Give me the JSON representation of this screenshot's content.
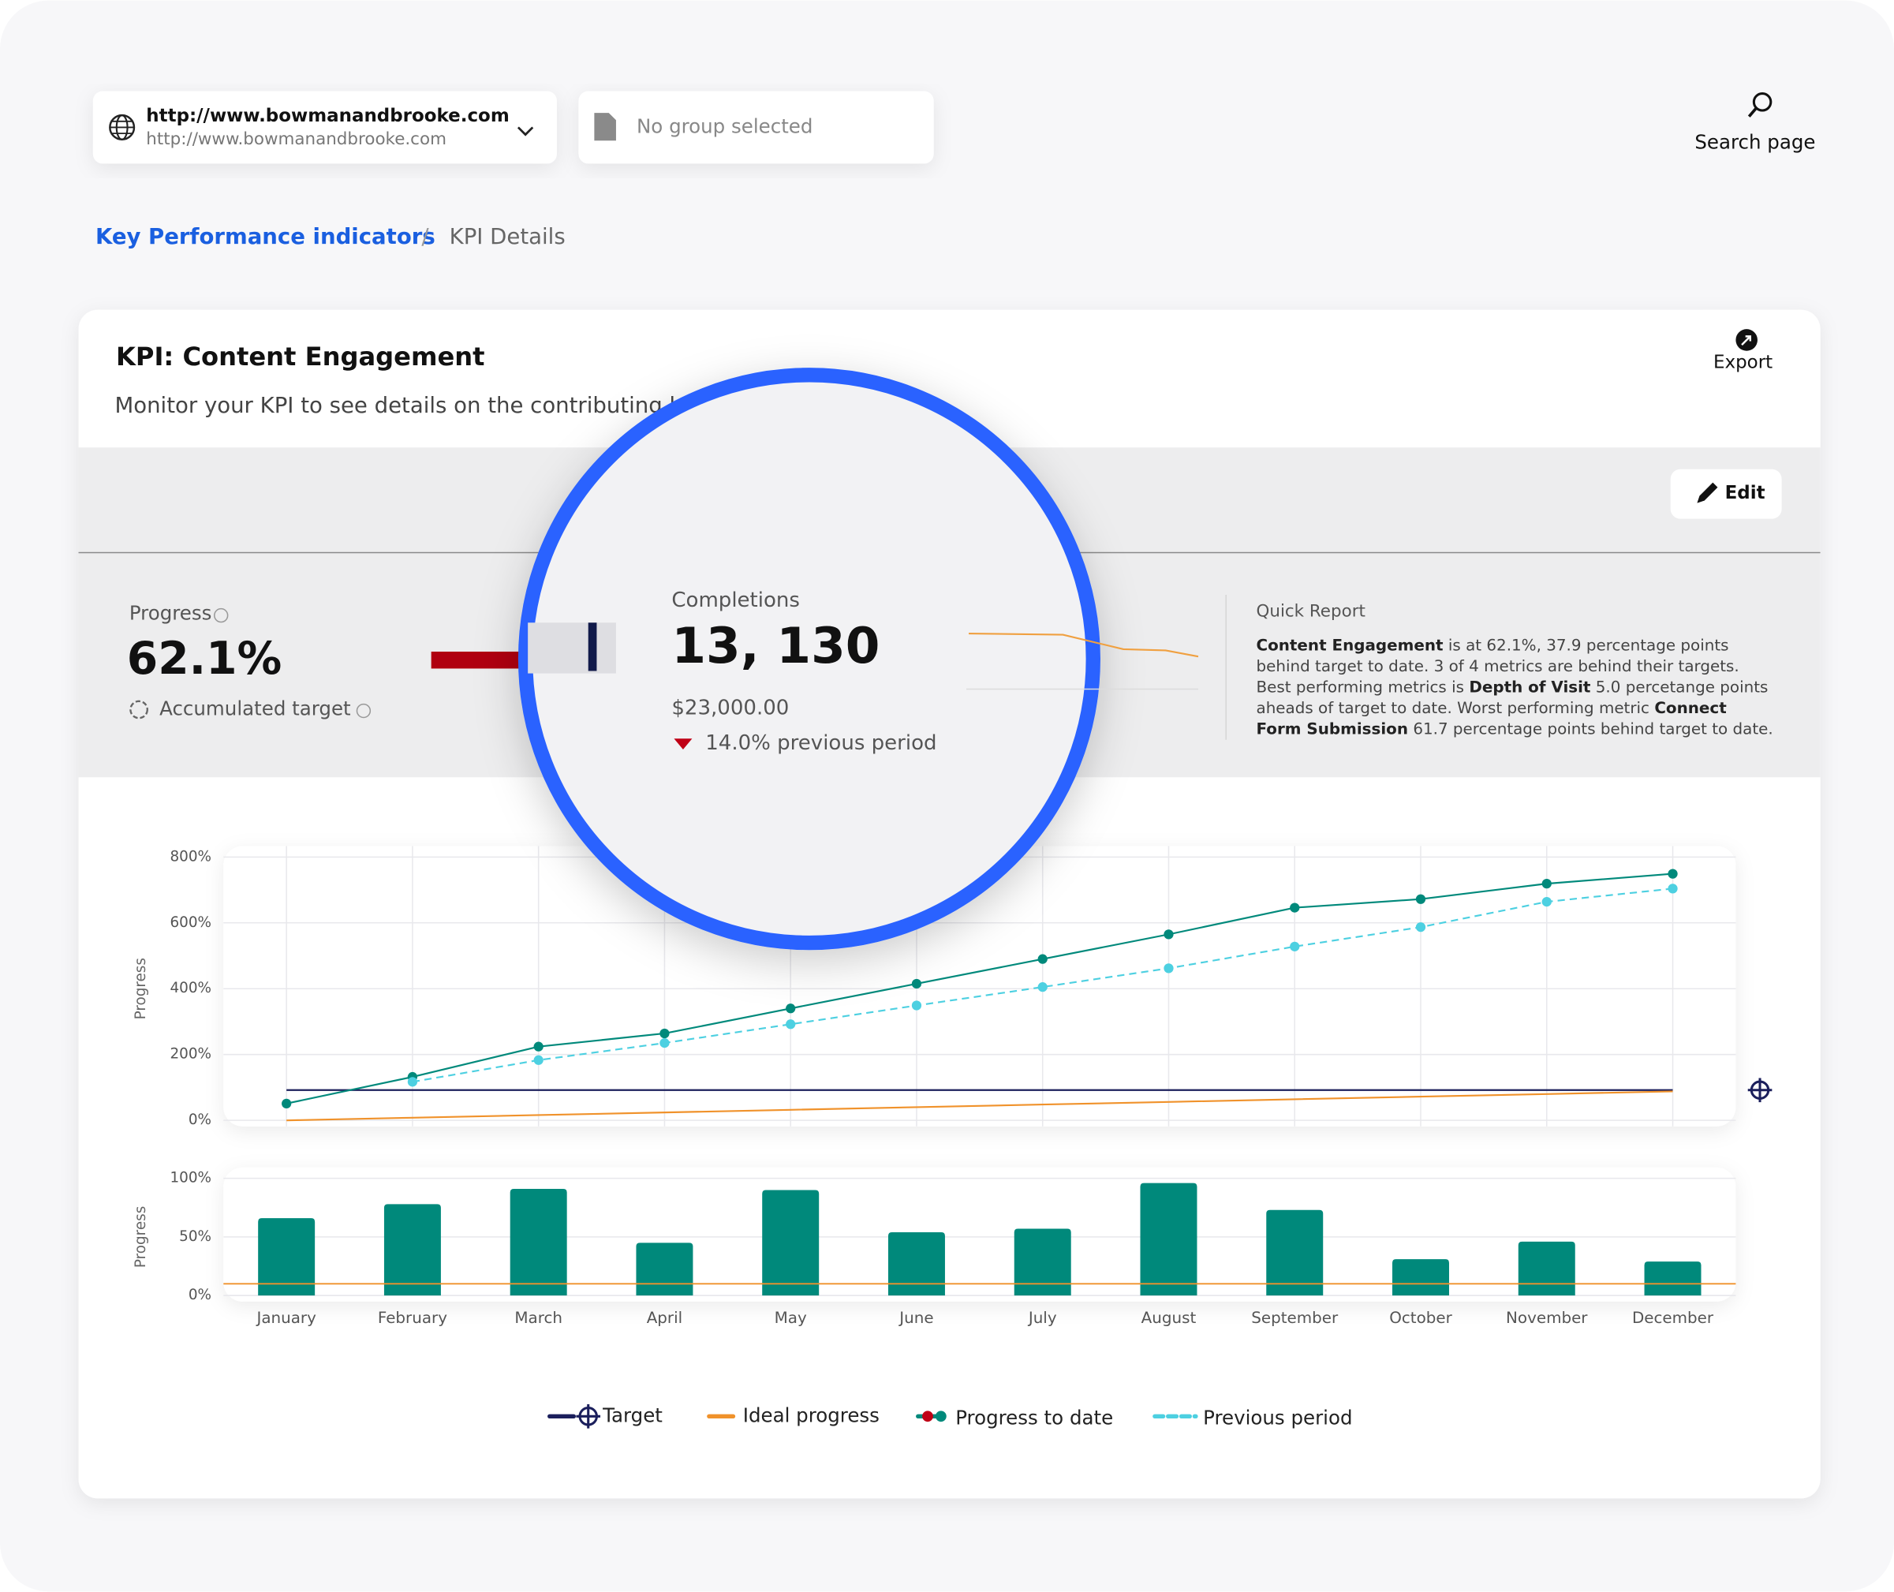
{
  "url_selector": {
    "primary": "http://www.bowmanandbrooke.com",
    "secondary": "http://www.bowmanandbrooke.com"
  },
  "group_selector": "No group selected",
  "search": "Search page",
  "breadcrumb": {
    "parent": "Key Performance indicators",
    "separator": "/",
    "current": "KPI Details"
  },
  "kpi": {
    "title": "KPI: Content Engagement",
    "subtitle": "Monitor your KPI to see details on the contributing k",
    "export": "Export",
    "edit": "Edit"
  },
  "progress": {
    "label": "Progress",
    "value": "62.1%",
    "accumulated": "Accumulated target"
  },
  "completions": {
    "label": "Completions",
    "value": "13, 130",
    "amount": "$23,000.00",
    "change": "14.0% previous period"
  },
  "quick_report": {
    "title": "Quick Report",
    "lines": [
      [
        {
          "text": "Content Engagement",
          "bold": true
        },
        {
          "text": " is at 62.1%, 37.9 percentage points",
          "bold": false
        }
      ],
      [
        {
          "text": "behind target to date. 3 of 4 metrics are behind their targets.",
          "bold": false
        }
      ],
      [
        {
          "text": "Best performing metrics is ",
          "bold": false
        },
        {
          "text": "Depth of Visit",
          "bold": true
        },
        {
          "text": " 5.0 percetange points",
          "bold": false
        }
      ],
      [
        {
          "text": "aheads of target to date. Worst performing metric ",
          "bold": false
        },
        {
          "text": "Connect",
          "bold": true
        }
      ],
      [
        {
          "text": "Form Submission",
          "bold": true
        },
        {
          "text": " 61.7 percentage points behind target to date.",
          "bold": false
        }
      ]
    ]
  },
  "chart_data": [
    {
      "type": "line",
      "y_label": "Progress",
      "ylim": [
        0,
        800
      ],
      "yticks": [
        {
          "value": 0,
          "label": "0%"
        },
        {
          "value": 200,
          "label": "200%"
        },
        {
          "value": 400,
          "label": "400%"
        },
        {
          "value": 600,
          "label": "600%"
        },
        {
          "value": 800,
          "label": "800%"
        }
      ],
      "grid": true,
      "series": [
        {
          "name": "Target",
          "color": "#1b1f5c",
          "dashed": false,
          "markers": false,
          "values": [
            92,
            92,
            92,
            92,
            92,
            92,
            92,
            92,
            92,
            92,
            92,
            92
          ]
        },
        {
          "name": "Ideal progress",
          "color": "#f0922b",
          "dashed": false,
          "markers": false,
          "values": [
            0,
            8,
            16,
            24,
            32,
            40,
            48,
            56,
            64,
            72,
            80,
            88
          ]
        },
        {
          "name": "Progress to date",
          "color": "#00897b",
          "dashed": false,
          "markers": true,
          "values": [
            51,
            132,
            224,
            264,
            340,
            415,
            490,
            565,
            646,
            672,
            719,
            749
          ]
        },
        {
          "name": "Previous period",
          "color": "#4dd0e1",
          "dashed": true,
          "markers": true,
          "values": [
            null,
            117,
            183,
            235,
            292,
            349,
            405,
            462,
            528,
            587,
            664,
            704
          ]
        }
      ]
    },
    {
      "type": "bar",
      "y_label": "Progress",
      "ylim": [
        0,
        100
      ],
      "yticks": [
        {
          "value": 0,
          "label": "0%"
        },
        {
          "value": 50,
          "label": "50%"
        },
        {
          "value": 100,
          "label": "100%"
        }
      ],
      "grid": true,
      "categories": [
        "January",
        "February",
        "March",
        "April",
        "May",
        "June",
        "July",
        "August",
        "September",
        "October",
        "November",
        "December"
      ],
      "values": [
        66,
        78,
        91,
        45,
        90,
        54,
        57,
        96,
        73,
        31,
        46,
        29
      ],
      "color": "#00897b",
      "reference_value": 10,
      "reference_color": "#f0922b"
    }
  ]
}
